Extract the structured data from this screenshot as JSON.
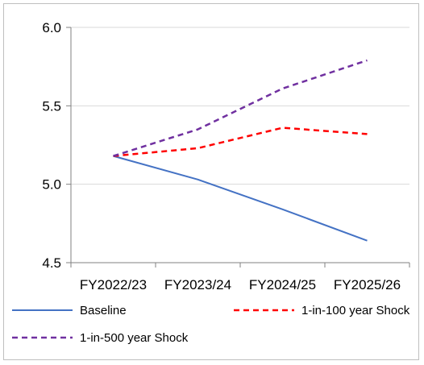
{
  "chart_data": {
    "type": "line",
    "categories": [
      "FY2022/23",
      "FY2023/24",
      "FY2024/25",
      "FY2025/26"
    ],
    "ylim": [
      4.5,
      6.0
    ],
    "yticks": [
      "4.5",
      "5.0",
      "5.5",
      "6.0"
    ],
    "grid": true,
    "legend_position": "bottom",
    "series": [
      {
        "name": "Baseline",
        "values": [
          5.18,
          5.03,
          4.84,
          4.64
        ],
        "color": "#4472C4",
        "style": "solid"
      },
      {
        "name": "1-in-100 year Shock",
        "values": [
          5.18,
          5.23,
          5.36,
          5.32
        ],
        "color": "#FF0000",
        "style": "dashed"
      },
      {
        "name": "1-in-500 year Shock",
        "values": [
          5.18,
          5.35,
          5.61,
          5.79
        ],
        "color": "#7030A0",
        "style": "dashed"
      }
    ]
  }
}
